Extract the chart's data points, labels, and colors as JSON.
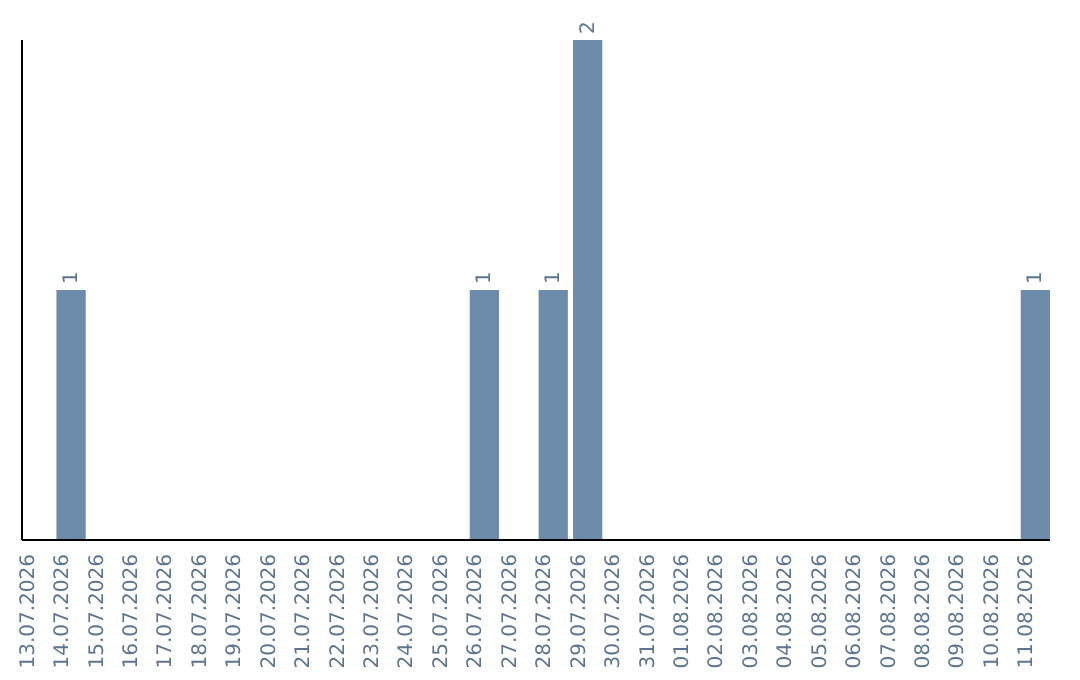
{
  "chart_data": {
    "type": "bar",
    "categories": [
      "13.07.2026",
      "14.07.2026",
      "15.07.2026",
      "16.07.2026",
      "17.07.2026",
      "18.07.2026",
      "19.07.2026",
      "20.07.2026",
      "21.07.2026",
      "22.07.2026",
      "23.07.2026",
      "24.07.2026",
      "25.07.2026",
      "26.07.2026",
      "27.07.2026",
      "28.07.2026",
      "29.07.2026",
      "30.07.2026",
      "31.07.2026",
      "01.08.2026",
      "02.08.2026",
      "03.08.2026",
      "04.08.2026",
      "05.08.2026",
      "06.08.2026",
      "07.08.2026",
      "08.08.2026",
      "09.08.2026",
      "10.08.2026",
      "11.08.2026"
    ],
    "values": [
      0,
      1,
      0,
      0,
      0,
      0,
      0,
      0,
      0,
      0,
      0,
      0,
      0,
      1,
      0,
      1,
      2,
      0,
      0,
      0,
      0,
      0,
      0,
      0,
      0,
      0,
      0,
      0,
      0,
      1
    ],
    "value_labels": [
      null,
      "1",
      null,
      null,
      null,
      null,
      null,
      null,
      null,
      null,
      null,
      null,
      null,
      "1",
      null,
      "1",
      "2",
      null,
      null,
      null,
      null,
      null,
      null,
      null,
      null,
      null,
      null,
      null,
      null,
      "1"
    ],
    "color": "#6d8cab",
    "ylim": [
      0,
      2
    ],
    "tick_labels": "x",
    "grid": false
  }
}
